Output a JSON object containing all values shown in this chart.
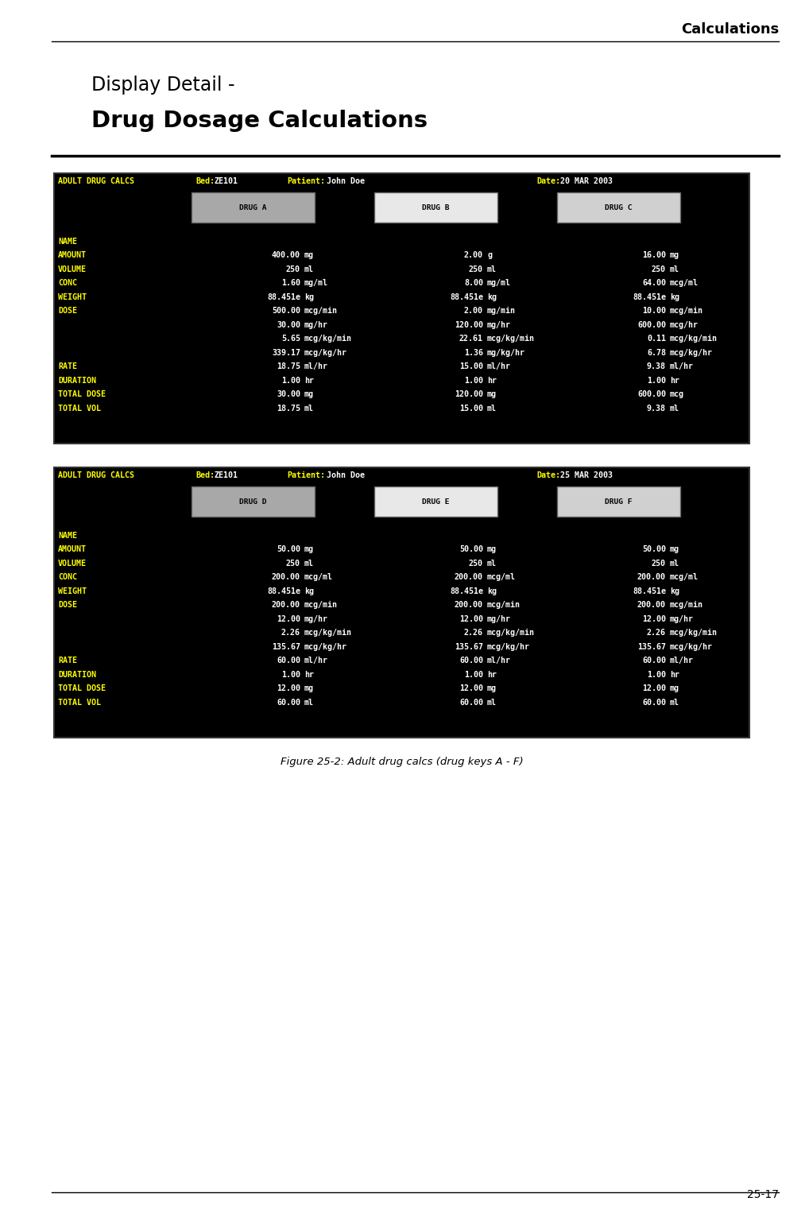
{
  "page_title": "Calculations",
  "page_number": "25-17",
  "display_title_line1": "Display Detail -",
  "display_title_line2": "Drug Dosage Calculations",
  "figure_caption": "Figure 25-2: Adult drug calcs (drug keys A - F)",
  "table1": {
    "header_left": "ADULT DRUG CALCS",
    "bed_label": "Bed:",
    "bed_value": "ZE101",
    "patient_label": "Patient:",
    "patient_value": "John Doe",
    "date_label": "Date:",
    "date_value": "20 MAR 2003",
    "drug_keys": [
      "DRUG A",
      "DRUG B",
      "DRUG C"
    ],
    "rows": [
      {
        "label": "NAME",
        "vals": [
          [
            "",
            ""
          ],
          [
            "",
            ""
          ],
          [
            "",
            ""
          ]
        ]
      },
      {
        "label": "AMOUNT",
        "vals": [
          [
            "400.00",
            "mg"
          ],
          [
            "2.00",
            "g"
          ],
          [
            "16.00",
            "mg"
          ]
        ]
      },
      {
        "label": "VOLUME",
        "vals": [
          [
            "250",
            "ml"
          ],
          [
            "250",
            "ml"
          ],
          [
            "250",
            "ml"
          ]
        ]
      },
      {
        "label": "CONC",
        "vals": [
          [
            "1.60",
            "mg/ml"
          ],
          [
            "8.00",
            "mg/ml"
          ],
          [
            "64.00",
            "mcg/ml"
          ]
        ]
      },
      {
        "label": "WEIGHT",
        "vals": [
          [
            "88.451e",
            "kg"
          ],
          [
            "88.451e",
            "kg"
          ],
          [
            "88.451e",
            "kg"
          ]
        ]
      },
      {
        "label": "DOSE",
        "vals": [
          [
            "500.00",
            "mcg/min"
          ],
          [
            "2.00",
            "mg/min"
          ],
          [
            "10.00",
            "mcg/min"
          ]
        ]
      },
      {
        "label": "",
        "vals": [
          [
            "30.00",
            "mg/hr"
          ],
          [
            "120.00",
            "mg/hr"
          ],
          [
            "600.00",
            "mcg/hr"
          ]
        ]
      },
      {
        "label": "",
        "vals": [
          [
            "5.65",
            "mcg/kg/min"
          ],
          [
            "22.61",
            "mcg/kg/min"
          ],
          [
            "0.11",
            "mcg/kg/min"
          ]
        ]
      },
      {
        "label": "",
        "vals": [
          [
            "339.17",
            "mcg/kg/hr"
          ],
          [
            "1.36",
            "mg/kg/hr"
          ],
          [
            "6.78",
            "mcg/kg/hr"
          ]
        ]
      },
      {
        "label": "RATE",
        "vals": [
          [
            "18.75",
            "ml/hr"
          ],
          [
            "15.00",
            "ml/hr"
          ],
          [
            "9.38",
            "ml/hr"
          ]
        ]
      },
      {
        "label": "DURATION",
        "vals": [
          [
            "1.00",
            "hr"
          ],
          [
            "1.00",
            "hr"
          ],
          [
            "1.00",
            "hr"
          ]
        ]
      },
      {
        "label": "TOTAL DOSE",
        "vals": [
          [
            "30.00",
            "mg"
          ],
          [
            "120.00",
            "mg"
          ],
          [
            "600.00",
            "mcg"
          ]
        ]
      },
      {
        "label": "TOTAL VOL",
        "vals": [
          [
            "18.75",
            "ml"
          ],
          [
            "15.00",
            "ml"
          ],
          [
            "9.38",
            "ml"
          ]
        ]
      }
    ]
  },
  "table2": {
    "header_left": "ADULT DRUG CALCS",
    "bed_label": "Bed:",
    "bed_value": "ZE101",
    "patient_label": "Patient:",
    "patient_value": "John Doe",
    "date_label": "Date:",
    "date_value": "25 MAR 2003",
    "drug_keys": [
      "DRUG D",
      "DRUG E",
      "DRUG F"
    ],
    "rows": [
      {
        "label": "NAME",
        "vals": [
          [
            "",
            ""
          ],
          [
            "",
            ""
          ],
          [
            "",
            ""
          ]
        ]
      },
      {
        "label": "AMOUNT",
        "vals": [
          [
            "50.00",
            "mg"
          ],
          [
            "50.00",
            "mg"
          ],
          [
            "50.00",
            "mg"
          ]
        ]
      },
      {
        "label": "VOLUME",
        "vals": [
          [
            "250",
            "ml"
          ],
          [
            "250",
            "ml"
          ],
          [
            "250",
            "ml"
          ]
        ]
      },
      {
        "label": "CONC",
        "vals": [
          [
            "200.00",
            "mcg/ml"
          ],
          [
            "200.00",
            "mcg/ml"
          ],
          [
            "200.00",
            "mcg/ml"
          ]
        ]
      },
      {
        "label": "WEIGHT",
        "vals": [
          [
            "88.451e",
            "kg"
          ],
          [
            "88.451e",
            "kg"
          ],
          [
            "88.451e",
            "kg"
          ]
        ]
      },
      {
        "label": "DOSE",
        "vals": [
          [
            "200.00",
            "mcg/min"
          ],
          [
            "200.00",
            "mcg/min"
          ],
          [
            "200.00",
            "mcg/min"
          ]
        ]
      },
      {
        "label": "",
        "vals": [
          [
            "12.00",
            "mg/hr"
          ],
          [
            "12.00",
            "mg/hr"
          ],
          [
            "12.00",
            "mg/hr"
          ]
        ]
      },
      {
        "label": "",
        "vals": [
          [
            "2.26",
            "mcg/kg/min"
          ],
          [
            "2.26",
            "mcg/kg/min"
          ],
          [
            "2.26",
            "mcg/kg/min"
          ]
        ]
      },
      {
        "label": "",
        "vals": [
          [
            "135.67",
            "mcg/kg/hr"
          ],
          [
            "135.67",
            "mcg/kg/hr"
          ],
          [
            "135.67",
            "mcg/kg/hr"
          ]
        ]
      },
      {
        "label": "RATE",
        "vals": [
          [
            "60.00",
            "ml/hr"
          ],
          [
            "60.00",
            "ml/hr"
          ],
          [
            "60.00",
            "ml/hr"
          ]
        ]
      },
      {
        "label": "DURATION",
        "vals": [
          [
            "1.00",
            "hr"
          ],
          [
            "1.00",
            "hr"
          ],
          [
            "1.00",
            "hr"
          ]
        ]
      },
      {
        "label": "TOTAL DOSE",
        "vals": [
          [
            "12.00",
            "mg"
          ],
          [
            "12.00",
            "mg"
          ],
          [
            "12.00",
            "mg"
          ]
        ]
      },
      {
        "label": "TOTAL VOL",
        "vals": [
          [
            "60.00",
            "ml"
          ],
          [
            "60.00",
            "ml"
          ],
          [
            "60.00",
            "ml"
          ]
        ]
      }
    ]
  },
  "yellow": "#FFFF00",
  "white": "#FFFFFF",
  "black": "#000000",
  "drug_btn_color_A": "#A8A8A8",
  "drug_btn_color_B": "#E8E8E8",
  "drug_btn_color_C": "#D0D0D0",
  "drug_btn_color_D": "#A8A8A8",
  "drug_btn_color_E": "#E8E8E8",
  "drug_btn_color_F": "#D0D0D0"
}
